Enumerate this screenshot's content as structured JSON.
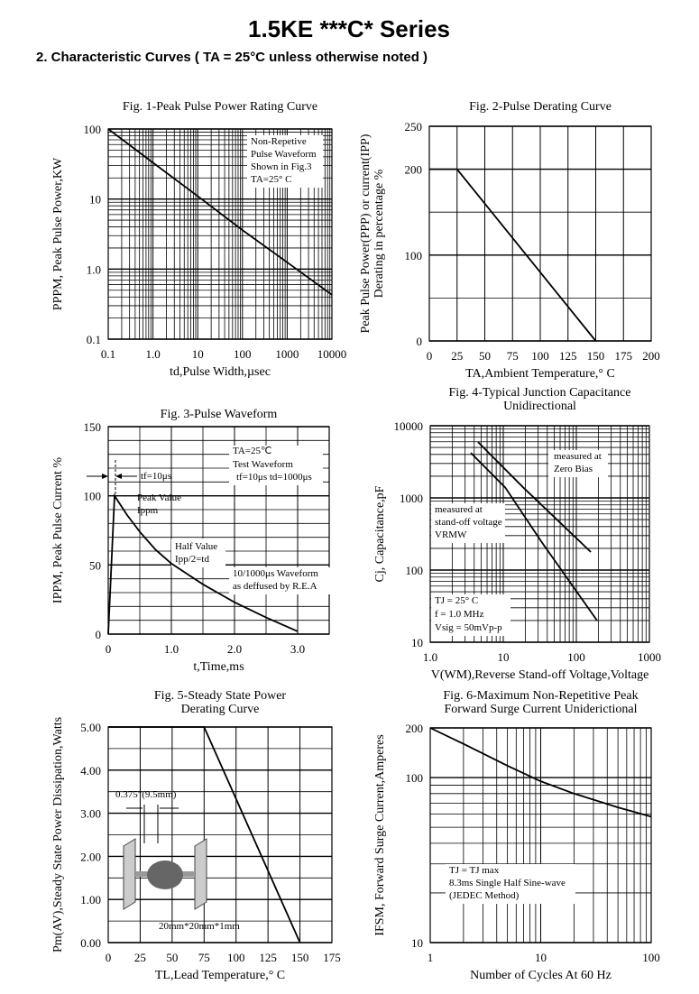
{
  "title": "1.5KE ***C* Series",
  "subtitle": "2. Characteristic Curves ( TA = 25°C unless otherwise noted )",
  "chart_data": [
    {
      "type": "line",
      "title": [
        "Fig. 1-Peak Pulse Power Rating Curve"
      ],
      "xlabel": [
        "td,Pulse Width,µsec"
      ],
      "ylabel": [
        "PPPM, Peak Pulse Power,KW"
      ],
      "xscale": "log",
      "yscale": "log",
      "grid": true,
      "minor_grid": true,
      "xlim": [
        0.1,
        10000
      ],
      "ylim": [
        0.1,
        100
      ],
      "xticks": [
        0.1,
        {
          "value": 1,
          "label": "1.0"
        },
        10,
        100,
        1000,
        10000
      ],
      "yticks": [
        0.1,
        {
          "value": 1,
          "label": "1.0"
        },
        10,
        100
      ],
      "series": [
        {
          "color": "#000000",
          "x": [
            0.1,
            1,
            10,
            100,
            1000,
            10000
          ],
          "values": [
            100,
            33,
            11,
            3.6,
            1.25,
            0.43
          ]
        }
      ],
      "annotations": [
        "Non-Repetive",
        "Pulse Waveform",
        "Shown in Fig.3",
        "TA=25° C"
      ]
    },
    {
      "type": "line",
      "title": [
        "Fig. 2-Pulse Derating Curve"
      ],
      "xlabel": [
        "TA,Ambient Temperature,° C"
      ],
      "ylabel": [
        "Peak Pulse Power(PPP) or current(IPP)",
        "Derating in percentage %"
      ],
      "grid": true,
      "yminor": 50,
      "xlim": [
        0,
        200
      ],
      "ylim": [
        0,
        250
      ],
      "xticks": [
        0,
        25,
        50,
        75,
        100,
        125,
        150,
        175,
        200
      ],
      "yticks": [
        0,
        100,
        200,
        250
      ],
      "series": [
        {
          "color": "#000000",
          "x": [
            0,
            25,
            150
          ],
          "values": [
            200,
            200,
            0
          ]
        }
      ],
      "annotations": []
    },
    {
      "type": "line",
      "title": [
        "Fig. 3-Pulse Waveform"
      ],
      "xlabel": [
        "t,Time,ms"
      ],
      "ylabel": [
        "IPPM, Peak Pulse Current %"
      ],
      "grid": true,
      "xminor": 0.5,
      "yminor": 10,
      "xlim": [
        0,
        3.5
      ],
      "ylim": [
        0,
        150
      ],
      "xticks": [
        0,
        {
          "value": 1,
          "label": "1.0"
        },
        {
          "value": 2,
          "label": "2.0"
        },
        {
          "value": 3,
          "label": "3.0"
        }
      ],
      "yticks": [
        0,
        50,
        100,
        150
      ],
      "series": [
        {
          "color": "#000000",
          "x": [
            0,
            0.1,
            0.2,
            0.3,
            0.5,
            0.75,
            1.0,
            1.5,
            2.0,
            2.5,
            3.0
          ],
          "values": [
            0,
            100,
            93,
            86,
            74,
            61,
            51,
            36,
            23,
            12,
            2
          ]
        }
      ],
      "annotations": [
        "TA=25℃",
        "Test Waveform",
        "tf=10μs td=1000μs",
        "tf=10μs",
        "Peak Value",
        "Ippm",
        "Half  Value",
        "Ipp/2=td",
        "10/1000μs Waveform",
        "as deffused by R.E.A"
      ]
    },
    {
      "type": "line",
      "title": [
        "Fig. 4-Typical Junction Capacitance",
        "Unidirectional"
      ],
      "xlabel": [
        "V(WM),Reverse Stand-off Voltage,Voltage"
      ],
      "ylabel": [
        "Cj, Capacitance,pF"
      ],
      "xscale": "log",
      "yscale": "log",
      "grid": true,
      "minor_grid": true,
      "xlim": [
        1,
        1000
      ],
      "ylim": [
        10,
        10000
      ],
      "xticks": [
        {
          "value": 1,
          "label": "1.0"
        },
        10,
        100,
        1000
      ],
      "yticks": [
        10,
        100,
        1000,
        10000
      ],
      "series": [
        {
          "color": "#000000",
          "x": [
            3.6,
            10.6,
            33,
            192
          ],
          "values": [
            4200,
            1400,
            250,
            20
          ]
        },
        {
          "color": "#000000",
          "x": [
            4.5,
            18.7,
            158
          ],
          "values": [
            5960,
            1400,
            178
          ]
        }
      ],
      "annotations": [
        "measured at",
        "Zero Bias",
        "measured at",
        "stand-off voltage",
        "VRMW",
        "TJ = 25° C",
        "f = 1.0 MHz",
        "Vsig = 50mVp-p"
      ]
    },
    {
      "type": "line",
      "title": [
        "Fig. 5-Steady State Power",
        "Derating Curve"
      ],
      "xlabel": [
        "TL,Lead Temperature,° C"
      ],
      "ylabel": [
        "Pm(AV),Steady State Power Dissipation,Watts"
      ],
      "grid": true,
      "yminor": 0.5,
      "xlim": [
        0,
        175
      ],
      "ylim": [
        0,
        5
      ],
      "xticks": [
        0,
        25,
        50,
        75,
        100,
        125,
        150,
        175
      ],
      "yticks": [
        {
          "value": 0,
          "label": "0.00"
        },
        {
          "value": 1,
          "label": "1.00"
        },
        {
          "value": 2,
          "label": "2.00"
        },
        {
          "value": 3,
          "label": "3.00"
        },
        {
          "value": 4,
          "label": "4.00"
        },
        {
          "value": 5,
          "label": "5.00"
        }
      ],
      "series": [
        {
          "color": "#000000",
          "x": [
            0,
            75,
            150
          ],
          "values": [
            5,
            5,
            0
          ]
        }
      ],
      "annotations": [],
      "diagram_labels": [
        "0.375\"(9.5mm)",
        "20mm*20mm*1mm"
      ]
    },
    {
      "type": "line",
      "title": [
        "Fig. 6-Maximum Non-Repetitive Peak",
        "Forward Surge Current Uniderictional"
      ],
      "xlabel": [
        "Number of Cycles At 60 Hz"
      ],
      "ylabel": [
        "IFSM, Forward Surge Current,Amperes"
      ],
      "xscale": "log",
      "yscale": "log",
      "grid": true,
      "minor_grid": true,
      "xlim": [
        1,
        100
      ],
      "ylim": [
        10,
        200
      ],
      "xticks": [
        1,
        10,
        100
      ],
      "yticks": [
        10,
        100,
        200
      ],
      "series": [
        {
          "color": "#000000",
          "x": [
            1,
            2,
            5,
            10,
            20,
            50,
            100
          ],
          "values": [
            200,
            160,
            118,
            95,
            80,
            66,
            58
          ]
        }
      ],
      "annotations": [
        "TJ = TJ max",
        "8.3ms Single Half Sine-wave",
        "(JEDEC Method)"
      ]
    }
  ]
}
